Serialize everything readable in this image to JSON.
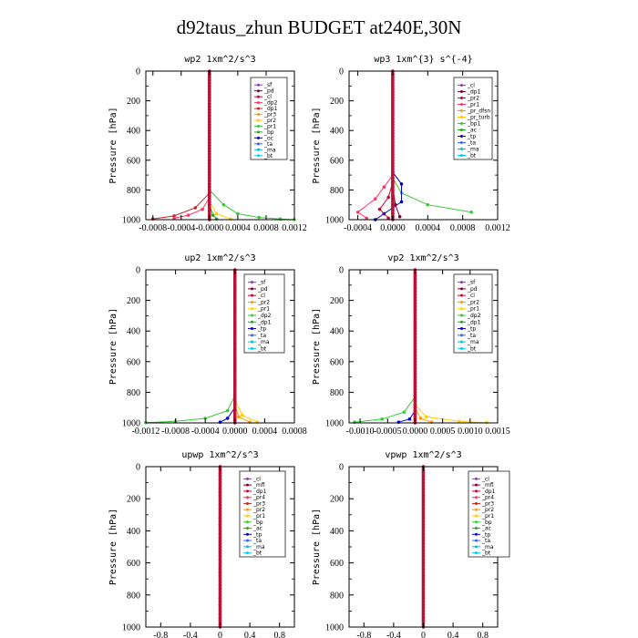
{
  "title": "d92taus_zhun  BUDGET at240E,30N",
  "chart_data": [
    {
      "type": "line",
      "title": "wp2  1xm^2/s^3",
      "ylabel": "Pressure [hPa]",
      "ylim": [
        1000,
        0
      ],
      "yticks": [
        "0",
        "200",
        "400",
        "600",
        "800",
        "1000"
      ],
      "xlim": [
        -0.0009,
        0.0012
      ],
      "xticks": [
        -0.0008,
        -0.0004,
        0.0,
        0.0004,
        0.0008,
        0.0012
      ],
      "xticklabels": [
        "-0.0008",
        "-0.0004",
        "-0.0000",
        "0.0004",
        "0.0008",
        "0.0012"
      ],
      "legend": [
        "_sf",
        "_pd",
        "_cl",
        "_dp2",
        "_dp1",
        "_pr3",
        "_pr2",
        "_pr1",
        "_bp",
        "_oc",
        "_ta",
        "_ma",
        "_bt"
      ],
      "colors": [
        "#9933cc",
        "#7a0033",
        "#cc0033",
        "#ff3366",
        "#cc2222",
        "#ff9900",
        "#ffcc00",
        "#33cc33",
        "#22aa22",
        "#0000cc",
        "#3366ff",
        "#00bbdd",
        "#00ccff"
      ],
      "series": [
        {
          "name": "_pr1",
          "x": [
            0,
            0.0002,
            0.0004,
            0.0007,
            0.001,
            0.0012
          ],
          "y": [
            800,
            900,
            960,
            985,
            995,
            1000
          ]
        },
        {
          "name": "_dp1",
          "x": [
            0,
            -0.0002,
            -0.0005,
            -0.0008
          ],
          "y": [
            820,
            920,
            975,
            995
          ]
        },
        {
          "name": "_dp2",
          "x": [
            0,
            -0.0001,
            -0.0003,
            -0.0005
          ],
          "y": [
            850,
            930,
            970,
            990
          ]
        },
        {
          "name": "_pr2",
          "x": [
            0,
            0.0001,
            0.0003
          ],
          "y": [
            880,
            960,
            995
          ]
        },
        {
          "name": "_bp",
          "x": [
            0,
            5e-05,
            0.0001
          ],
          "y": [
            900,
            970,
            995
          ]
        }
      ]
    },
    {
      "type": "line",
      "title": "wp3  1xm^{3} s^{-4}",
      "ylabel": "Pressure [hPa]",
      "ylim": [
        1000,
        0
      ],
      "yticks": [
        "0",
        "200",
        "400",
        "600",
        "800",
        "1000"
      ],
      "xlim": [
        -0.0005,
        0.0012
      ],
      "xticks": [
        -0.0004,
        0.0,
        0.0004,
        0.0008,
        0.0012
      ],
      "xticklabels": [
        "-0.0004",
        "0.0000",
        "0.0004",
        "0.0008",
        "0.0012"
      ],
      "legend": [
        "_cl",
        "_dp1",
        "_pr2",
        "_pr1",
        "_pr_dfsn",
        "_pr_turb",
        "_bp1",
        "_ac",
        "_tp",
        "_ta",
        "_ma",
        "_bt"
      ],
      "colors": [
        "#9933cc",
        "#7a0033",
        "#cc0033",
        "#ff3366",
        "#ff9900",
        "#ffcc00",
        "#33cc33",
        "#22aa22",
        "#0000cc",
        "#3366ff",
        "#00bbdd",
        "#00ccff"
      ],
      "series": [
        {
          "name": "_bp1",
          "x": [
            0,
            0.0001,
            0.0004,
            0.0009
          ],
          "y": [
            720,
            820,
            900,
            950
          ]
        },
        {
          "name": "_pr1",
          "x": [
            0,
            -0.0001,
            -0.0002,
            -0.0004,
            -0.0003
          ],
          "y": [
            700,
            780,
            860,
            950,
            990
          ]
        },
        {
          "name": "_tp",
          "x": [
            0,
            0.0001,
            0.0001,
            -0.0001,
            -0.0002
          ],
          "y": [
            680,
            760,
            880,
            960,
            1000
          ]
        },
        {
          "name": "_pr2",
          "x": [
            0,
            -5e-05,
            -0.00015,
            -5e-05
          ],
          "y": [
            750,
            850,
            930,
            990
          ]
        },
        {
          "name": "_dp1",
          "x": [
            0,
            3e-05,
            8e-05
          ],
          "y": [
            780,
            900,
            980
          ]
        }
      ]
    },
    {
      "type": "line",
      "title": "up2  1xm^2/s^3",
      "ylabel": "Pressure [hPa]",
      "ylim": [
        1000,
        0
      ],
      "yticks": [
        "0",
        "200",
        "400",
        "600",
        "800",
        "1000"
      ],
      "xlim": [
        -0.0012,
        0.0008
      ],
      "xticks": [
        -0.0012,
        -0.0008,
        -0.0004,
        0.0,
        0.0004,
        0.0008
      ],
      "xticklabels": [
        "-0.0012",
        "-0.0008",
        "-0.0004",
        "0.0000",
        "0.0004",
        "0.0008"
      ],
      "legend": [
        "_sf",
        "_pd",
        "_cl",
        "_pr2",
        "_pr1",
        "_dp2",
        "_dp1",
        "_tp",
        "_ta",
        "_ma",
        "_bt"
      ],
      "colors": [
        "#9933cc",
        "#7a0033",
        "#cc0033",
        "#ff9900",
        "#ffcc00",
        "#33cc33",
        "#22aa22",
        "#0000cc",
        "#3366ff",
        "#00bbdd",
        "#00ccff"
      ],
      "series": [
        {
          "name": "_dp2",
          "x": [
            0,
            -0.0001,
            -0.0004,
            -0.0008,
            -0.0012
          ],
          "y": [
            820,
            920,
            970,
            990,
            998
          ]
        },
        {
          "name": "_pr1",
          "x": [
            0,
            0.0001,
            0.0003
          ],
          "y": [
            850,
            950,
            995
          ]
        },
        {
          "name": "_pr2",
          "x": [
            0,
            5e-05,
            0.0002
          ],
          "y": [
            880,
            960,
            995
          ]
        },
        {
          "name": "_tp",
          "x": [
            0,
            -0.0001,
            -0.0002
          ],
          "y": [
            900,
            970,
            995
          ]
        }
      ]
    },
    {
      "type": "line",
      "title": "vp2  1xm^2/s^3",
      "ylabel": "Pressure [hPa]",
      "ylim": [
        1000,
        0
      ],
      "yticks": [
        "0",
        "200",
        "400",
        "600",
        "800",
        "1000"
      ],
      "xlim": [
        -0.0012,
        0.0015
      ],
      "xticks": [
        -0.001,
        -0.0005,
        0.0,
        0.0005,
        0.001,
        0.0015
      ],
      "xticklabels": [
        "-0.0010",
        "-0.0005",
        "0.0000",
        "0.0005",
        "0.0010",
        "0.0015"
      ],
      "legend": [
        "_sf",
        "_pd",
        "_cl",
        "_pr2",
        "_pr1",
        "_dp2",
        "_dp1",
        "_tp",
        "_ta",
        "_ma",
        "_bt"
      ],
      "colors": [
        "#9933cc",
        "#7a0033",
        "#cc0033",
        "#ff9900",
        "#ffcc00",
        "#33cc33",
        "#22aa22",
        "#0000cc",
        "#3366ff",
        "#00bbdd",
        "#00ccff"
      ],
      "series": [
        {
          "name": "_dp2",
          "x": [
            0,
            -0.0002,
            -0.0006,
            -0.0011
          ],
          "y": [
            830,
            930,
            975,
            995
          ]
        },
        {
          "name": "_pr1",
          "x": [
            0,
            0.0002,
            0.0008,
            0.0013
          ],
          "y": [
            880,
            960,
            990,
            998
          ]
        },
        {
          "name": "_pr2",
          "x": [
            0,
            0.0001,
            0.0003
          ],
          "y": [
            900,
            970,
            995
          ]
        },
        {
          "name": "_tp",
          "x": [
            0,
            -0.0001,
            -0.0003
          ],
          "y": [
            920,
            975,
            995
          ]
        }
      ]
    },
    {
      "type": "line",
      "title": "upwp  1xm^2/s^3",
      "ylabel": "Pressure [hPa]",
      "ylim": [
        1000,
        0
      ],
      "yticks": [
        "0",
        "200",
        "400",
        "600",
        "800",
        "1000"
      ],
      "xlim": [
        -1.0,
        1.0
      ],
      "xticks": [
        -0.8,
        -0.4,
        0.0,
        0.4,
        0.8
      ],
      "xticklabels": [
        "-0.8",
        "-0.4",
        "0",
        "0.4",
        "0.8"
      ],
      "legend": [
        "_cl",
        "_mfl",
        "_dp1",
        "_pr4",
        "_pr3",
        "_pr2",
        "_pr1",
        "_bp",
        "_ac",
        "_tp",
        "_ta",
        "_ma",
        "_bt"
      ],
      "colors": [
        "#9933cc",
        "#7a0033",
        "#cc0033",
        "#ff3366",
        "#cc2222",
        "#ff9900",
        "#ffcc00",
        "#33cc33",
        "#22aa22",
        "#0000cc",
        "#3366ff",
        "#00bbdd",
        "#00ccff"
      ],
      "series": []
    },
    {
      "type": "line",
      "title": "vpwp  1xm^2/s^3",
      "ylabel": "Pressure [hPa]",
      "ylim": [
        1000,
        0
      ],
      "yticks": [
        "0",
        "200",
        "400",
        "600",
        "800",
        "1000"
      ],
      "xlim": [
        -1.0,
        1.0
      ],
      "xticks": [
        -0.8,
        -0.4,
        0.0,
        0.4,
        0.8
      ],
      "xticklabels": [
        "-0.8",
        "-0.4",
        "0",
        "0.4",
        "0.8"
      ],
      "legend": [
        "_cl",
        "_mfl",
        "_dp1",
        "_pr4",
        "_pr3",
        "_pr2",
        "_pr1",
        "_bp",
        "_ac",
        "_tp",
        "_ta",
        "_ma",
        "_bt"
      ],
      "colors": [
        "#9933cc",
        "#7a0033",
        "#cc0033",
        "#ff3366",
        "#cc2222",
        "#ff9900",
        "#ffcc00",
        "#33cc33",
        "#22aa22",
        "#0000cc",
        "#3366ff",
        "#00bbdd",
        "#00ccff"
      ],
      "series": []
    }
  ]
}
